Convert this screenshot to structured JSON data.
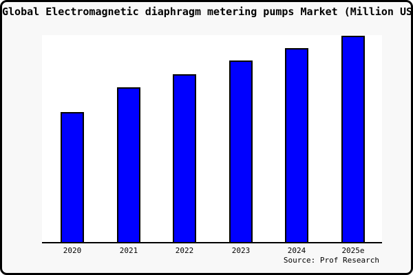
{
  "title": "Global Electromagnetic diaphragm metering pumps Market (Million USD)",
  "source": "Source: Prof Research",
  "colors": {
    "bar_fill": "#0000ff",
    "bar_edge": "#000000",
    "frame_background": "#f8f8f8",
    "plot_background": "#ffffff",
    "text": "#000000"
  },
  "chart_data": {
    "type": "bar",
    "title": "Global Electromagnetic diaphragm metering pumps Market (Million USD)",
    "categories": [
      "2020",
      "2021",
      "2022",
      "2023",
      "2024",
      "2025e"
    ],
    "values": [
      63,
      75,
      81.5,
      88,
      94,
      100
    ],
    "value_scale": "relative height, no numeric y-axis shown (2025e = 100)",
    "xlabel": "",
    "ylabel": "",
    "ylim": [
      0,
      100
    ],
    "grid": false,
    "legend": "none",
    "y_axis_ticks": "none",
    "bar_color": "#0000ff",
    "bar_edge_color": "#000000",
    "source": "Source: Prof Research"
  }
}
